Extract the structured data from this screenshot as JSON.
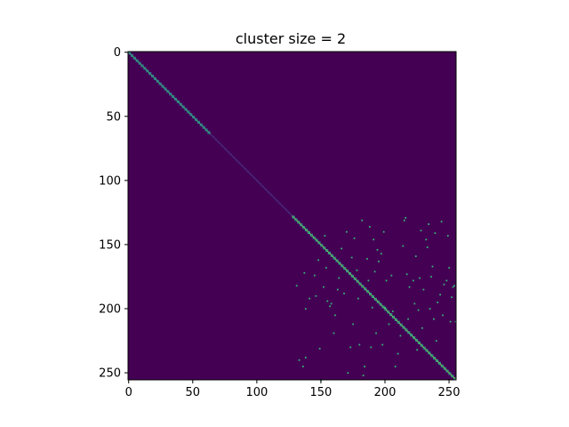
{
  "chart_data": {
    "type": "heatmap",
    "title": "cluster size = 2",
    "xlabel": "",
    "ylabel": "",
    "matrix_size": 256,
    "xlim": [
      0,
      255
    ],
    "ylim": [
      255,
      0
    ],
    "x_ticks": [
      0,
      50,
      100,
      150,
      200,
      250
    ],
    "y_ticks": [
      0,
      50,
      100,
      150,
      200,
      250
    ],
    "colormap": "viridis",
    "background_color": "#440154",
    "diagonal_segments": [
      {
        "start": 0,
        "end": 64,
        "color": "#35b779",
        "dot_color": "#31688e"
      },
      {
        "start": 64,
        "end": 128,
        "color": "#472d7b"
      },
      {
        "start": 128,
        "end": 256,
        "color": "#6ece58",
        "dot_color": "#26828e"
      }
    ],
    "offdiag_points": [
      [
        131,
        182
      ],
      [
        133,
        240
      ],
      [
        136,
        245
      ],
      [
        137,
        172
      ],
      [
        138,
        200
      ],
      [
        138,
        238
      ],
      [
        141,
        192
      ],
      [
        145,
        174
      ],
      [
        146,
        190
      ],
      [
        148,
        162
      ],
      [
        149,
        231
      ],
      [
        150,
        256
      ],
      [
        152,
        183
      ],
      [
        153,
        143
      ],
      [
        154,
        168
      ],
      [
        155,
        194
      ],
      [
        157,
        198
      ],
      [
        158,
        196
      ],
      [
        160,
        219
      ],
      [
        161,
        205
      ],
      [
        163,
        185
      ],
      [
        164,
        176
      ],
      [
        166,
        153
      ],
      [
        168,
        188
      ],
      [
        170,
        140
      ],
      [
        171,
        250
      ],
      [
        173,
        230
      ],
      [
        174,
        160
      ],
      [
        175,
        212
      ],
      [
        176,
        145
      ],
      [
        178,
        170
      ],
      [
        179,
        192
      ],
      [
        180,
        228
      ],
      [
        182,
        131
      ],
      [
        183,
        252
      ],
      [
        184,
        245
      ],
      [
        186,
        161
      ],
      [
        187,
        178
      ],
      [
        188,
        136
      ],
      [
        189,
        230
      ],
      [
        190,
        199
      ],
      [
        191,
        146
      ],
      [
        192,
        171
      ],
      [
        193,
        219
      ],
      [
        194,
        154
      ],
      [
        195,
        163
      ],
      [
        197,
        157
      ],
      [
        198,
        228
      ],
      [
        199,
        140
      ],
      [
        200,
        199
      ],
      [
        201,
        178
      ],
      [
        203,
        212
      ],
      [
        205,
        174
      ],
      [
        206,
        202
      ],
      [
        208,
        245
      ],
      [
        210,
        235
      ],
      [
        212,
        221
      ],
      [
        214,
        151
      ],
      [
        215,
        131
      ],
      [
        216,
        129
      ],
      [
        217,
        173
      ],
      [
        218,
        208
      ],
      [
        219,
        183
      ],
      [
        220,
        220
      ],
      [
        222,
        178
      ],
      [
        223,
        196
      ],
      [
        224,
        159
      ],
      [
        225,
        232
      ],
      [
        226,
        201
      ],
      [
        227,
        176
      ],
      [
        228,
        139
      ],
      [
        229,
        215
      ],
      [
        230,
        185
      ],
      [
        232,
        146
      ],
      [
        233,
        152
      ],
      [
        234,
        134
      ],
      [
        235,
        200
      ],
      [
        236,
        175
      ],
      [
        237,
        167
      ],
      [
        238,
        208
      ],
      [
        239,
        141
      ],
      [
        240,
        225
      ],
      [
        241,
        195
      ],
      [
        243,
        189
      ],
      [
        244,
        132
      ],
      [
        245,
        205
      ],
      [
        246,
        181
      ],
      [
        248,
        178
      ],
      [
        249,
        143
      ],
      [
        250,
        168
      ],
      [
        251,
        210
      ],
      [
        252,
        191
      ],
      [
        253,
        183
      ],
      [
        254,
        182
      ],
      [
        255,
        210
      ]
    ],
    "offdiag_color": "#35b779"
  }
}
